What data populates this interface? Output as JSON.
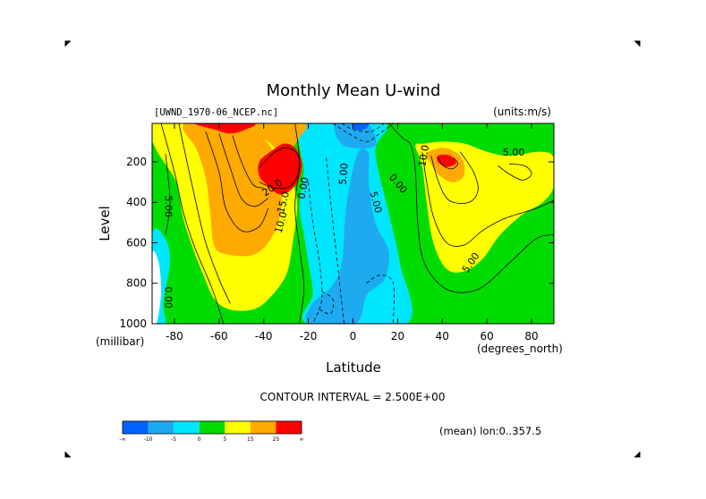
{
  "chart_data": {
    "type": "contour",
    "title": "Monthly Mean U-wind",
    "subtitle_left": "[UWND_1970-06_NCEP.nc]",
    "subtitle_right": "(units:m/s)",
    "xlabel": "Latitude",
    "ylabel": "Level",
    "x_unit": "(degrees_north)",
    "y_unit": "(millibar)",
    "xlim": [
      -90,
      90
    ],
    "ylim": [
      1000,
      10
    ],
    "x_ticks": [
      -80,
      -60,
      -40,
      -20,
      0,
      20,
      40,
      60,
      80
    ],
    "y_ticks": [
      200,
      400,
      600,
      800,
      1000
    ],
    "contour_interval_text": "CONTOUR INTERVAL = 2.500E+00",
    "averaging_text": "(mean) lon:0..357.5",
    "colorbar": {
      "tick_labels": [
        "-∞",
        "-10",
        "-5",
        "0",
        "5",
        "15",
        "25",
        "∞"
      ],
      "colors": [
        "#0064ff",
        "#1eaaf0",
        "#00e6ff",
        "#00dc00",
        "#ffff00",
        "#ffaa00",
        "#ff0000"
      ]
    },
    "contour_labels": [
      {
        "text": "5.00",
        "lat": -83,
        "lev": 420,
        "angle": 90
      },
      {
        "text": "0.00",
        "lat": -83,
        "lev": 870,
        "angle": 90
      },
      {
        "text": "20.0",
        "lat": -36,
        "lev": 330,
        "angle": -35
      },
      {
        "text": "10.0",
        "lat": -32,
        "lev": 500,
        "angle": -75
      },
      {
        "text": "15.0",
        "lat": -31,
        "lev": 400,
        "angle": -75
      },
      {
        "text": "0.00",
        "lat": -22,
        "lev": 330,
        "angle": -80
      },
      {
        "text": "5.00",
        "lat": -4,
        "lev": 260,
        "angle": -85
      },
      {
        "text": "5.00",
        "lat": 10,
        "lev": 400,
        "angle": 75
      },
      {
        "text": "0.00",
        "lat": 20,
        "lev": 310,
        "angle": 50
      },
      {
        "text": "10.0",
        "lat": 32,
        "lev": 170,
        "angle": -80
      },
      {
        "text": "5.00",
        "lat": 72,
        "lev": 155,
        "angle": 0
      },
      {
        "text": "5.00",
        "lat": 53,
        "lev": 700,
        "angle": -55
      }
    ],
    "filled_regions": [
      {
        "fill": "#00dc00",
        "pts": [
          [
            -90,
            10
          ],
          [
            -48,
            10
          ],
          [
            -40,
            120
          ],
          [
            -34,
            200
          ],
          [
            -30,
            300
          ],
          [
            -27,
            420
          ],
          [
            -23,
            560
          ],
          [
            -20,
            700
          ],
          [
            -18,
            850
          ],
          [
            -20,
            1000
          ],
          [
            -90,
            1000
          ]
        ]
      },
      {
        "fill": "#00dc00",
        "pts": [
          [
            12,
            10
          ],
          [
            90,
            10
          ],
          [
            90,
            1000
          ],
          [
            24,
            1000
          ],
          [
            21,
            700
          ],
          [
            16,
            450
          ],
          [
            13,
            250
          ],
          [
            12,
            100
          ]
        ]
      },
      {
        "fill": "#00e6ff",
        "pts": [
          [
            -90,
            560
          ],
          [
            -84,
            580
          ],
          [
            -82,
            700
          ],
          [
            -85,
            900
          ],
          [
            -84,
            1000
          ],
          [
            -90,
            1000
          ]
        ]
      },
      {
        "fill": "#ffffff",
        "pts": [
          [
            -90,
            660
          ],
          [
            -87,
            700
          ],
          [
            -86,
            850
          ],
          [
            -88,
            1000
          ],
          [
            -90,
            1000
          ]
        ]
      },
      {
        "fill": "#00e6ff",
        "pts": [
          [
            -22,
            10
          ],
          [
            14,
            10
          ],
          [
            10,
            150
          ],
          [
            16,
            450
          ],
          [
            21,
            700
          ],
          [
            24,
            1000
          ],
          [
            -20,
            1000
          ],
          [
            -18,
            850
          ],
          [
            -20,
            700
          ],
          [
            -22,
            560
          ],
          [
            -24,
            420
          ],
          [
            -22,
            250
          ]
        ]
      },
      {
        "fill": "#1eaaf0",
        "pts": [
          [
            2,
            160
          ],
          [
            7,
            160
          ],
          [
            7,
            300
          ],
          [
            10,
            500
          ],
          [
            16,
            640
          ],
          [
            14,
            780
          ],
          [
            6,
            860
          ],
          [
            1,
            1000
          ],
          [
            -20,
            1000
          ],
          [
            -18,
            900
          ],
          [
            -10,
            820
          ],
          [
            -5,
            700
          ],
          [
            -3,
            420
          ]
        ]
      },
      {
        "fill": "#1eaaf0",
        "pts": [
          [
            -8,
            10
          ],
          [
            6,
            10
          ],
          [
            10,
            120
          ],
          [
            -4,
            120
          ]
        ]
      },
      {
        "fill": "#0064ff",
        "pts": [
          [
            0,
            10
          ],
          [
            7,
            10
          ],
          [
            5,
            40
          ],
          [
            1,
            40
          ]
        ]
      },
      {
        "fill": "#ffff00",
        "pts": [
          [
            -89,
            120
          ],
          [
            -80,
            280
          ],
          [
            -78,
            360
          ],
          [
            -76,
            480
          ],
          [
            -72,
            620
          ],
          [
            -67,
            760
          ],
          [
            -62,
            880
          ],
          [
            -55,
            930
          ],
          [
            -45,
            930
          ],
          [
            -38,
            880
          ],
          [
            -30,
            760
          ],
          [
            -27,
            600
          ],
          [
            -25,
            420
          ],
          [
            -27,
            300
          ],
          [
            -32,
            160
          ],
          [
            -38,
            80
          ],
          [
            -40,
            10
          ],
          [
            -89,
            10
          ]
        ]
      },
      {
        "fill": "#ffaa00",
        "pts": [
          [
            -75,
            10
          ],
          [
            -70,
            140
          ],
          [
            -66,
            280
          ],
          [
            -64,
            450
          ],
          [
            -62,
            620
          ],
          [
            -55,
            660
          ],
          [
            -45,
            660
          ],
          [
            -38,
            600
          ],
          [
            -33,
            480
          ],
          [
            -32,
            330
          ],
          [
            -35,
            170
          ],
          [
            -40,
            80
          ],
          [
            -44,
            10
          ]
        ]
      },
      {
        "fill": "#ffaa00",
        "pts": [
          [
            -46,
            10
          ],
          [
            -38,
            100
          ],
          [
            -32,
            150
          ],
          [
            -28,
            140
          ],
          [
            -24,
            80
          ],
          [
            -22,
            10
          ]
        ]
      },
      {
        "fill": "#ff0000",
        "pts": [
          [
            -42,
            200
          ],
          [
            -37,
            150
          ],
          [
            -31,
            110
          ],
          [
            -26,
            130
          ],
          [
            -23,
            200
          ],
          [
            -24,
            280
          ],
          [
            -28,
            340
          ],
          [
            -33,
            360
          ],
          [
            -38,
            320
          ],
          [
            -42,
            270
          ]
        ]
      },
      {
        "fill": "#ff0000",
        "pts": [
          [
            -70,
            10
          ],
          [
            -62,
            40
          ],
          [
            -55,
            60
          ],
          [
            -48,
            40
          ],
          [
            -45,
            10
          ]
        ]
      },
      {
        "fill": "#ffff00",
        "pts": [
          [
            28,
            120
          ],
          [
            31,
            220
          ],
          [
            33,
            400
          ],
          [
            36,
            600
          ],
          [
            42,
            730
          ],
          [
            50,
            740
          ],
          [
            58,
            680
          ],
          [
            66,
            560
          ],
          [
            76,
            460
          ],
          [
            85,
            400
          ],
          [
            90,
            320
          ],
          [
            90,
            180
          ],
          [
            84,
            150
          ],
          [
            70,
            170
          ],
          [
            60,
            150
          ],
          [
            50,
            110
          ],
          [
            40,
            100
          ],
          [
            32,
            110
          ]
        ]
      },
      {
        "fill": "#ffaa00",
        "pts": [
          [
            33,
            160
          ],
          [
            35,
            210
          ],
          [
            38,
            260
          ],
          [
            44,
            300
          ],
          [
            49,
            280
          ],
          [
            50,
            220
          ],
          [
            47,
            160
          ],
          [
            40,
            130
          ]
        ]
      },
      {
        "fill": "#ff0000",
        "pts": [
          [
            38,
            170
          ],
          [
            38,
            200
          ],
          [
            42,
            225
          ],
          [
            46,
            210
          ],
          [
            45,
            180
          ],
          [
            42,
            165
          ]
        ]
      }
    ],
    "solid_contours": [
      [
        [
          -86,
          10
        ],
        [
          -80,
          250
        ],
        [
          -76,
          450
        ],
        [
          -71,
          620
        ],
        [
          -63,
          830
        ],
        [
          -58,
          1000
        ]
      ],
      [
        [
          -78,
          10
        ],
        [
          -74,
          220
        ],
        [
          -70,
          420
        ],
        [
          -66,
          600
        ],
        [
          -60,
          780
        ],
        [
          -55,
          900
        ]
      ],
      [
        [
          -66,
          50
        ],
        [
          -60,
          250
        ],
        [
          -57,
          430
        ],
        [
          -50,
          540
        ],
        [
          -42,
          520
        ],
        [
          -38,
          430
        ]
      ],
      [
        [
          -60,
          60
        ],
        [
          -55,
          230
        ],
        [
          -50,
          380
        ],
        [
          -44,
          420
        ],
        [
          -38,
          380
        ]
      ],
      [
        [
          -54,
          70
        ],
        [
          -50,
          200
        ],
        [
          -45,
          310
        ],
        [
          -40,
          330
        ]
      ],
      [
        [
          -84,
          160
        ],
        [
          -82,
          400
        ],
        [
          -84,
          560
        ]
      ],
      [
        [
          -26,
          10
        ],
        [
          -24,
          200
        ],
        [
          -26,
          420
        ],
        [
          -24,
          620
        ],
        [
          -22,
          820
        ],
        [
          -24,
          1000
        ]
      ],
      [
        [
          -42,
          230
        ],
        [
          -36,
          160
        ],
        [
          -30,
          130
        ],
        [
          -25,
          160
        ],
        [
          -24,
          240
        ],
        [
          -28,
          320
        ],
        [
          -35,
          330
        ],
        [
          -42,
          300
        ]
      ],
      [
        [
          31,
          150
        ],
        [
          33,
          300
        ],
        [
          36,
          470
        ],
        [
          42,
          600
        ],
        [
          50,
          610
        ],
        [
          58,
          540
        ],
        [
          68,
          480
        ],
        [
          82,
          430
        ],
        [
          90,
          390
        ]
      ],
      [
        [
          35,
          170
        ],
        [
          38,
          290
        ],
        [
          43,
          390
        ],
        [
          52,
          400
        ],
        [
          56,
          340
        ],
        [
          54,
          250
        ],
        [
          48,
          150
        ]
      ],
      [
        [
          65,
          220
        ],
        [
          70,
          260
        ],
        [
          76,
          290
        ],
        [
          80,
          260
        ],
        [
          77,
          220
        ],
        [
          70,
          210
        ]
      ],
      [
        [
          38,
          175
        ],
        [
          40,
          215
        ],
        [
          44,
          235
        ],
        [
          47,
          210
        ],
        [
          45,
          180
        ]
      ],
      [
        [
          16,
          10
        ],
        [
          22,
          80
        ],
        [
          26,
          120
        ],
        [
          28,
          250
        ],
        [
          29,
          500
        ],
        [
          32,
          700
        ],
        [
          42,
          830
        ],
        [
          56,
          830
        ],
        [
          70,
          700
        ],
        [
          82,
          580
        ],
        [
          90,
          560
        ]
      ]
    ],
    "dashed_contours": [
      [
        [
          -20,
          300
        ],
        [
          -18,
          500
        ],
        [
          -15,
          700
        ],
        [
          -14,
          880
        ],
        [
          -18,
          1000
        ]
      ],
      [
        [
          -12,
          180
        ],
        [
          -10,
          400
        ],
        [
          -8,
          600
        ],
        [
          -6,
          800
        ],
        [
          -4,
          1000
        ]
      ],
      [
        [
          -9,
          10
        ],
        [
          -2,
          60
        ],
        [
          6,
          100
        ],
        [
          12,
          60
        ],
        [
          18,
          10
        ]
      ],
      [
        [
          -14,
          840
        ],
        [
          -9,
          880
        ],
        [
          -10,
          950
        ],
        [
          -15,
          930
        ]
      ],
      [
        [
          6,
          800
        ],
        [
          12,
          760
        ],
        [
          18,
          800
        ],
        [
          18,
          1000
        ]
      ],
      [
        [
          -5,
          10
        ],
        [
          0,
          40
        ],
        [
          8,
          50
        ],
        [
          14,
          10
        ]
      ]
    ]
  }
}
